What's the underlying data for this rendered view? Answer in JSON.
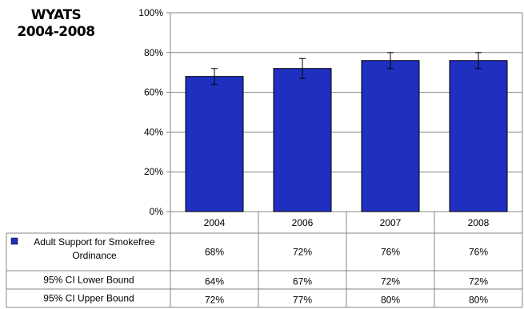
{
  "title_lines": [
    "WYATS",
    "2004-2008"
  ],
  "table": {
    "rows": [
      {
        "label_lines": [
          "Adult Support for Smokefree",
          "Ordinance"
        ],
        "values": [
          "68%",
          "72%",
          "76%",
          "76%"
        ],
        "legend_color": "#1f2fbf"
      },
      {
        "label_lines": [
          "95% CI Lower Bound"
        ],
        "values": [
          "64%",
          "67%",
          "72%",
          "72%"
        ]
      },
      {
        "label_lines": [
          "95% CI Upper Bound"
        ],
        "values": [
          "72%",
          "77%",
          "80%",
          "80%"
        ]
      }
    ]
  },
  "chart_data": {
    "type": "bar",
    "categories": [
      "2004",
      "2006",
      "2007",
      "2008"
    ],
    "series": [
      {
        "name": "Adult Support for Smokefree Ordinance",
        "values": [
          68,
          72,
          76,
          76
        ],
        "ci_lower": [
          64,
          67,
          72,
          72
        ],
        "ci_upper": [
          72,
          77,
          80,
          80
        ]
      }
    ],
    "yticks": [
      "0%",
      "20%",
      "40%",
      "60%",
      "80%",
      "100%"
    ],
    "ylim": [
      0,
      100
    ],
    "grid": true,
    "bar_color": "#1f2fbf",
    "legend": "in data table"
  }
}
